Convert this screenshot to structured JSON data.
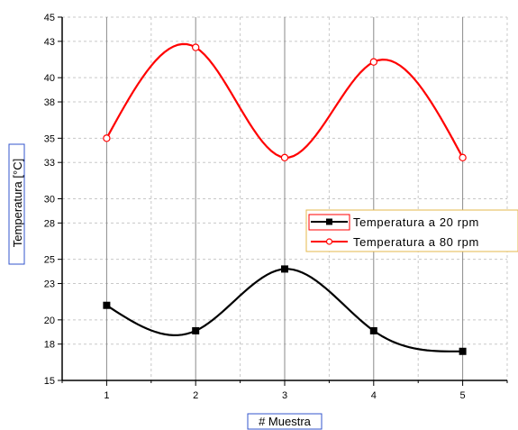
{
  "chart_data": {
    "type": "line",
    "title": "",
    "xlabel": "# Muestra",
    "ylabel": "Temperatura [°C]",
    "x": [
      1,
      2,
      3,
      4,
      5
    ],
    "xlim": [
      0.5,
      5.5
    ],
    "ylim": [
      15,
      45
    ],
    "xticks": [
      "1",
      "2",
      "3",
      "4",
      "5"
    ],
    "yticks": [
      "15",
      "18",
      "20",
      "23",
      "25",
      "28",
      "30",
      "33",
      "35",
      "38",
      "40",
      "43",
      "45"
    ],
    "grid": true,
    "legend_position": "right",
    "series": [
      {
        "name": "Temperatura a 20 rpm",
        "color": "#000000",
        "marker": "filled-square",
        "line": "smooth",
        "values": [
          21.2,
          19.1,
          24.2,
          19.1,
          17.4
        ]
      },
      {
        "name": "Temperatura a 80 rpm",
        "color": "#ff0000",
        "marker": "open-circle",
        "line": "smooth",
        "values": [
          35.0,
          42.5,
          33.4,
          41.3,
          33.4
        ]
      }
    ]
  }
}
